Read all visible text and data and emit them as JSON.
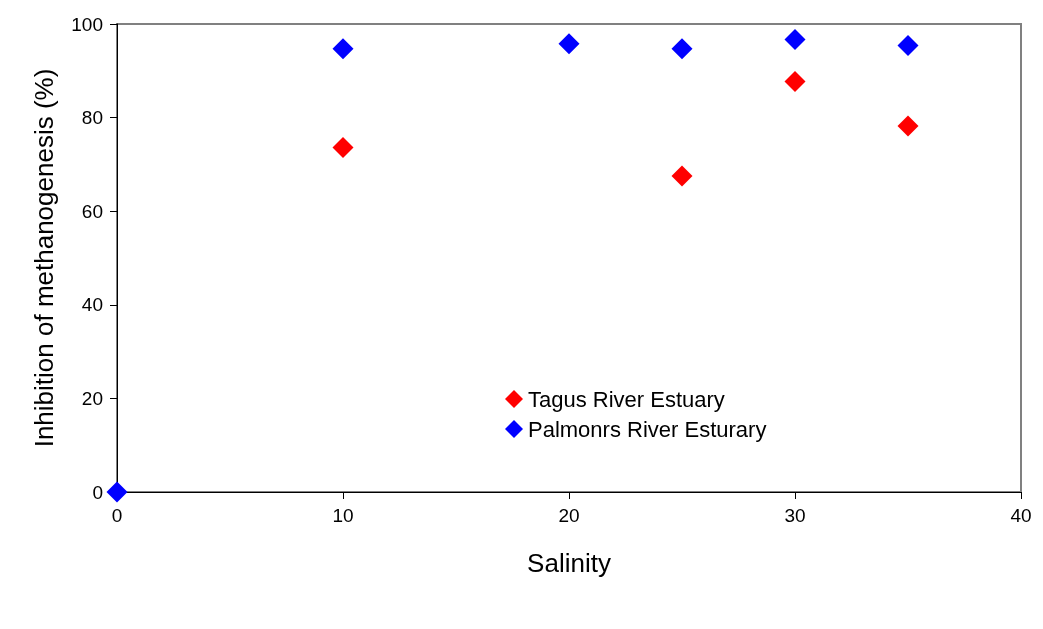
{
  "chart_data": {
    "type": "scatter",
    "xlabel": "Salinity",
    "ylabel": "Inhibition of methanogenesis (%)",
    "xlim": [
      0,
      40
    ],
    "xticks": [
      0,
      10,
      20,
      30,
      40
    ],
    "ylim": [
      0,
      100
    ],
    "yticks": [
      0,
      20,
      40,
      60,
      80,
      100
    ],
    "series": [
      {
        "name": "Tagus River Estuary",
        "color": "#ff0000",
        "x": [
          10,
          25,
          30,
          35
        ],
        "values": [
          73.6,
          67.5,
          87.7,
          78.2
        ]
      },
      {
        "name": "Palmonrs River Esturary",
        "color": "#0000ff",
        "x": [
          0,
          10,
          20,
          25,
          30,
          35
        ],
        "values": [
          0,
          94.7,
          95.8,
          94.7,
          96.7,
          95.4
        ]
      }
    ],
    "marker": "diamond",
    "grid": false,
    "legend": "bottom"
  }
}
